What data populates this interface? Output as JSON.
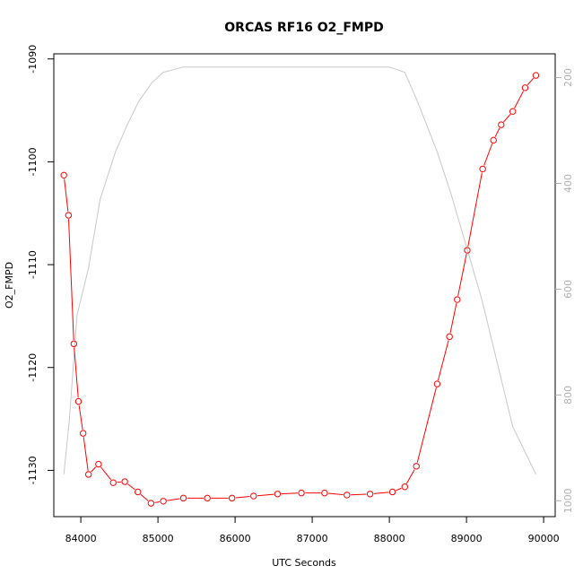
{
  "chart_data": {
    "type": "line",
    "title": "ORCAS RF16 O2_FMPD",
    "xlabel": "UTC Seconds",
    "ylabel": "O2_FMPD",
    "xlim": [
      83650,
      90150
    ],
    "ylim": [
      -1134.5,
      -1089.5
    ],
    "y2lim": [
      1030,
      155
    ],
    "x_ticks": [
      84000,
      85000,
      86000,
      87000,
      88000,
      89000,
      90000
    ],
    "y_ticks": [
      -1090,
      -1100,
      -1110,
      -1120,
      -1130
    ],
    "y2_ticks": [
      200,
      400,
      600,
      800,
      1000
    ],
    "grid": false,
    "series": [
      {
        "color": "#ff0000",
        "axis": "left",
        "marker": "open-circle",
        "x": [
          83780,
          83840,
          83910,
          83970,
          84030,
          84100,
          84230,
          84420,
          84570,
          84740,
          84910,
          85070,
          85330,
          85640,
          85960,
          86240,
          86550,
          86860,
          87160,
          87450,
          87750,
          88040,
          88200,
          88350,
          88620,
          88780,
          88880,
          89010,
          89210,
          89350,
          89450,
          89600,
          89760,
          89900
        ],
        "y": [
          -1101.3,
          -1105.2,
          -1117.7,
          -1123.3,
          -1126.4,
          -1130.4,
          -1129.4,
          -1131.2,
          -1131.1,
          -1132.1,
          -1133.2,
          -1133.0,
          -1132.7,
          -1132.7,
          -1132.7,
          -1132.5,
          -1132.3,
          -1132.2,
          -1132.2,
          -1132.4,
          -1132.3,
          -1132.1,
          -1131.6,
          -1129.6,
          -1121.6,
          -1117.0,
          -1113.4,
          -1108.6,
          -1100.7,
          -1097.9,
          -1096.4,
          -1095.1,
          -1092.8,
          -1091.6
        ]
      },
      {
        "color": "#c8c8c8",
        "axis": "right",
        "marker": "none",
        "x": [
          83780,
          83850,
          83950,
          84100,
          84250,
          84450,
          84600,
          84750,
          84920,
          85070,
          85330,
          88000,
          88200,
          88350,
          88620,
          88800,
          89000,
          89200,
          89400,
          89600,
          89900
        ],
        "y": [
          950,
          850,
          650,
          560,
          430,
          340,
          290,
          245,
          210,
          190,
          180,
          180,
          190,
          240,
          340,
          420,
          520,
          620,
          740,
          860,
          950
        ]
      }
    ]
  }
}
